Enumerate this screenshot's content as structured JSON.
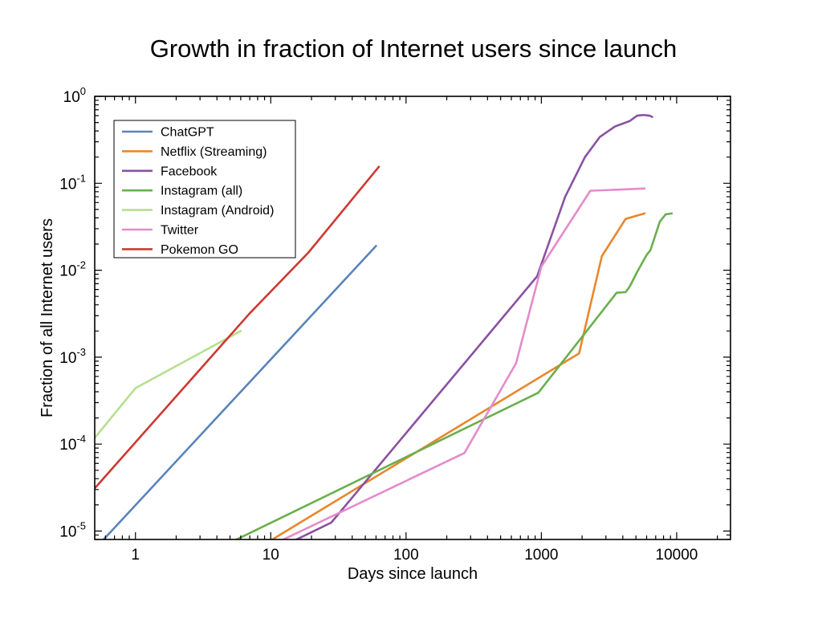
{
  "chart_data": {
    "type": "line",
    "title": "Growth in fraction of Internet users since launch",
    "xlabel": "Days since launch",
    "ylabel": "Fraction of all Internet users",
    "xscale": "log",
    "yscale": "log",
    "xlim": [
      0.5,
      25000
    ],
    "ylim": [
      8e-06,
      1
    ],
    "x_ticks": [
      {
        "value": 1,
        "label": "1"
      },
      {
        "value": 10,
        "label": "10"
      },
      {
        "value": 100,
        "label": "100"
      },
      {
        "value": 1000,
        "label": "1000"
      },
      {
        "value": 10000,
        "label": "10000"
      }
    ],
    "y_ticks": [
      {
        "value": 1,
        "base": "10",
        "exp": "0"
      },
      {
        "value": 0.1,
        "base": "10",
        "exp": "-1"
      },
      {
        "value": 0.01,
        "base": "10",
        "exp": "-2"
      },
      {
        "value": 0.001,
        "base": "10",
        "exp": "-3"
      },
      {
        "value": 0.0001,
        "base": "10",
        "exp": "-4"
      },
      {
        "value": 1e-05,
        "base": "10",
        "exp": "-5"
      }
    ],
    "legend_position": "top-left",
    "series": [
      {
        "name": "ChatGPT",
        "color": "#5a84ba",
        "points": [
          [
            0.5,
            6.2e-06
          ],
          [
            60,
            0.019
          ]
        ]
      },
      {
        "name": "Netflix (Streaming)",
        "color": "#e8872d",
        "points": [
          [
            10,
            7.8e-06
          ],
          [
            1800,
            0.00105
          ],
          [
            1900,
            0.0011
          ],
          [
            2800,
            0.0145
          ],
          [
            4200,
            0.039
          ],
          [
            5800,
            0.045
          ]
        ]
      },
      {
        "name": "Facebook",
        "color": "#8a51a3",
        "points": [
          [
            15,
            7.8e-06
          ],
          [
            28,
            1.25e-05
          ],
          [
            930,
            0.0085
          ],
          [
            1500,
            0.07
          ],
          [
            2100,
            0.2
          ],
          [
            2700,
            0.34
          ],
          [
            3500,
            0.45
          ],
          [
            4500,
            0.52
          ],
          [
            5100,
            0.6
          ],
          [
            5700,
            0.61
          ],
          [
            6300,
            0.6
          ],
          [
            6600,
            0.58
          ]
        ]
      },
      {
        "name": "Instagram (all)",
        "color": "#6aaf4c",
        "points": [
          [
            5.5,
            7.9e-06
          ],
          [
            950,
            0.00039
          ],
          [
            3600,
            0.0055
          ],
          [
            4200,
            0.0056
          ],
          [
            4500,
            0.0065
          ],
          [
            5100,
            0.0095
          ],
          [
            6000,
            0.015
          ],
          [
            6400,
            0.017
          ],
          [
            7500,
            0.036
          ],
          [
            8300,
            0.044
          ],
          [
            9200,
            0.045
          ]
        ]
      },
      {
        "name": "Instagram (Android)",
        "color": "#b6df90",
        "points": [
          [
            0.5,
            0.000118
          ],
          [
            1,
            0.00044
          ],
          [
            6,
            0.002
          ]
        ]
      },
      {
        "name": "Twitter",
        "color": "#e48bcb",
        "points": [
          [
            12,
            7.8e-06
          ],
          [
            270,
            7.9e-05
          ],
          [
            650,
            0.00085
          ],
          [
            1000,
            0.011
          ],
          [
            2300,
            0.082
          ],
          [
            5800,
            0.087
          ]
        ]
      },
      {
        "name": "Pokemon GO",
        "color": "#cd3a32",
        "points": [
          [
            0.5,
            3.1e-05
          ],
          [
            7,
            0.0032
          ],
          [
            19,
            0.016
          ],
          [
            63,
            0.155
          ]
        ]
      }
    ]
  }
}
